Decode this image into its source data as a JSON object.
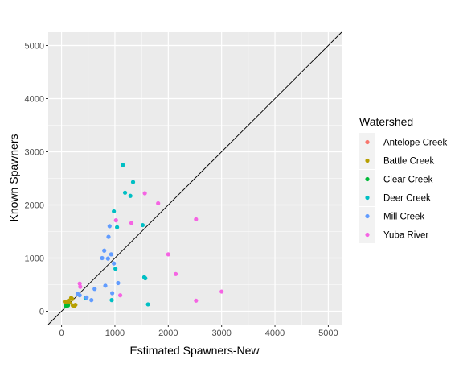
{
  "chart_data": {
    "type": "scatter",
    "xlabel": "Estimated Spawners-New",
    "ylabel": "Known Spawners",
    "xlim": [
      -250,
      5250
    ],
    "ylim": [
      -250,
      5250
    ],
    "x_ticks": [
      0,
      1000,
      2000,
      3000,
      4000,
      5000
    ],
    "y_ticks": [
      0,
      1000,
      2000,
      3000,
      4000,
      5000
    ],
    "x_tick_labels": [
      "0",
      "1000",
      "2000",
      "3000",
      "4000",
      "5000"
    ],
    "y_tick_labels": [
      "0",
      "1000",
      "2000",
      "3000",
      "4000",
      "5000"
    ],
    "reference_line": "y = x",
    "grid": true,
    "legend_position": "right",
    "legend_title": "Watershed",
    "series": [
      {
        "name": "Antelope Creek",
        "color": "#F8766D",
        "points": [
          [
            80,
            150
          ],
          [
            110,
            130
          ]
        ]
      },
      {
        "name": "Battle Creek",
        "color": "#B79F00",
        "points": [
          [
            60,
            180
          ],
          [
            100,
            150
          ],
          [
            130,
            200
          ],
          [
            150,
            160
          ],
          [
            180,
            250
          ],
          [
            200,
            230
          ],
          [
            210,
            110
          ],
          [
            240,
            100
          ],
          [
            260,
            120
          ]
        ]
      },
      {
        "name": "Clear Creek",
        "color": "#00BA38",
        "points": [
          [
            80,
            100
          ],
          [
            120,
            110
          ]
        ]
      },
      {
        "name": "Deer Creek",
        "color": "#00BFC4",
        "points": [
          [
            450,
            250
          ],
          [
            940,
            210
          ],
          [
            980,
            1880
          ],
          [
            1010,
            800
          ],
          [
            1040,
            1580
          ],
          [
            1150,
            2750
          ],
          [
            1190,
            2230
          ],
          [
            1290,
            2170
          ],
          [
            1340,
            2430
          ],
          [
            1520,
            1620
          ],
          [
            1550,
            640
          ],
          [
            1570,
            620
          ],
          [
            1620,
            130
          ]
        ]
      },
      {
        "name": "Mill Creek",
        "color": "#619CFF",
        "points": [
          [
            300,
            330
          ],
          [
            340,
            300
          ],
          [
            470,
            260
          ],
          [
            560,
            210
          ],
          [
            620,
            420
          ],
          [
            760,
            1000
          ],
          [
            800,
            1140
          ],
          [
            820,
            480
          ],
          [
            870,
            990
          ],
          [
            880,
            1400
          ],
          [
            900,
            1600
          ],
          [
            930,
            1070
          ],
          [
            950,
            340
          ],
          [
            980,
            900
          ],
          [
            1060,
            530
          ]
        ]
      },
      {
        "name": "Yuba River",
        "color": "#F564E3",
        "points": [
          [
            340,
            520
          ],
          [
            350,
            460
          ],
          [
            1020,
            1710
          ],
          [
            1100,
            300
          ],
          [
            1310,
            1660
          ],
          [
            1560,
            2220
          ],
          [
            1810,
            2030
          ],
          [
            2000,
            1070
          ],
          [
            2140,
            700
          ],
          [
            2520,
            1730
          ],
          [
            2520,
            200
          ],
          [
            3000,
            370
          ]
        ]
      }
    ]
  }
}
